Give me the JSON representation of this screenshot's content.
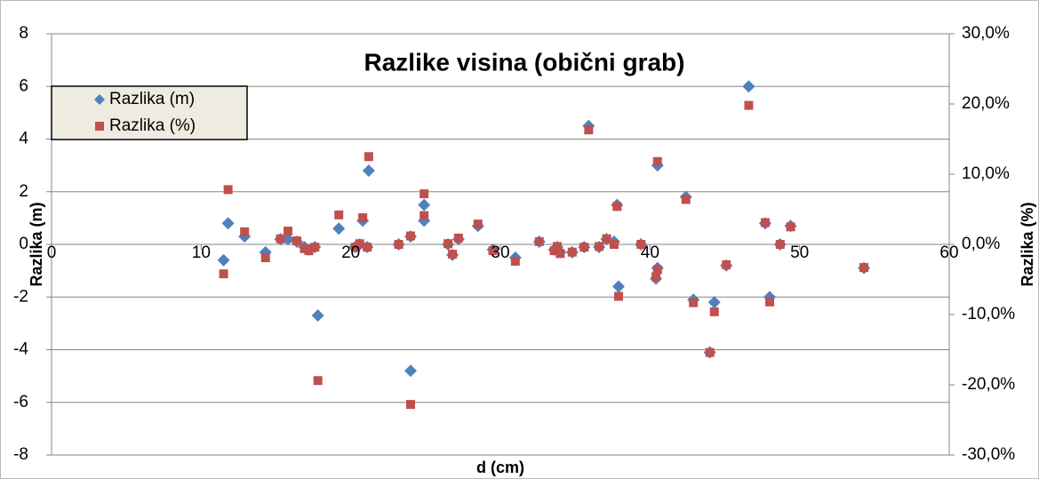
{
  "chart_data": {
    "type": "scatter",
    "title": "Razlike visina (obični grab)",
    "x_label": "d (cm)",
    "y_label": "Razlika (m)",
    "y2_label": "Razlika (%)",
    "xlim": [
      0,
      60
    ],
    "xticks": [
      0,
      10,
      20,
      30,
      40,
      50,
      60
    ],
    "ylim": [
      -8,
      8
    ],
    "yticks": [
      -8,
      -6,
      -4,
      -2,
      0,
      2,
      4,
      6,
      8
    ],
    "y2lim": [
      -30,
      30
    ],
    "y2ticks": [
      {
        "value": -30,
        "label": "-30,0%"
      },
      {
        "value": -20,
        "label": "-20,0%"
      },
      {
        "value": -10,
        "label": "-10,0%"
      },
      {
        "value": 0,
        "label": "0,0%"
      },
      {
        "value": 10,
        "label": "10,0%"
      },
      {
        "value": 20,
        "label": "20,0%"
      },
      {
        "value": 30,
        "label": "30,0%"
      }
    ],
    "grid": true,
    "legend": "upper left",
    "series": [
      {
        "name": "Razlika (m)",
        "color": "#4f81bd",
        "marker": "diamond",
        "x": [
          11.5,
          11.8,
          12.9,
          14.3,
          15.3,
          15.8,
          16.4,
          16.9,
          17.2,
          17.6,
          17.8,
          19.2,
          20.3,
          20.6,
          20.8,
          21.1,
          21.2,
          23.2,
          24.0,
          24.0,
          24.9,
          24.9,
          26.5,
          26.8,
          27.2,
          28.5,
          29.5,
          31.0,
          32.6,
          33.6,
          33.8,
          34.0,
          34.8,
          35.6,
          35.9,
          36.6,
          37.1,
          37.6,
          37.8,
          37.9,
          39.4,
          40.4,
          40.5,
          40.5,
          42.4,
          42.9,
          44.0,
          44.3,
          45.1,
          46.6,
          47.7,
          48.0,
          48.7,
          49.4,
          54.3
        ],
        "values": [
          -0.6,
          0.8,
          0.3,
          -0.3,
          0.2,
          0.2,
          0.1,
          -0.1,
          -0.2,
          -0.1,
          -2.7,
          0.6,
          -0.1,
          0,
          0.9,
          -0.1,
          2.8,
          0,
          0.3,
          -4.8,
          0.9,
          1.5,
          0,
          -0.4,
          0.2,
          0.7,
          -0.2,
          -0.5,
          0.1,
          -0.2,
          -0.1,
          -0.3,
          -0.3,
          -0.1,
          4.5,
          -0.1,
          0.2,
          0.1,
          1.5,
          -1.6,
          0,
          -1.3,
          -0.9,
          3.0,
          1.8,
          -2.1,
          -4.1,
          -2.2,
          -0.8,
          6.0,
          0.8,
          -2.0,
          0,
          0.7,
          -0.9
        ]
      },
      {
        "name": "Razlika (%)",
        "color": "#c0504d",
        "marker": "square",
        "axis": "y2",
        "x": [
          11.5,
          11.8,
          12.9,
          14.3,
          15.3,
          15.8,
          16.4,
          16.9,
          17.2,
          17.6,
          17.8,
          19.2,
          20.3,
          20.6,
          20.8,
          21.1,
          21.2,
          23.2,
          24.0,
          24.0,
          24.9,
          24.9,
          26.5,
          26.8,
          27.2,
          28.5,
          29.5,
          31.0,
          32.6,
          33.6,
          33.8,
          34.0,
          34.8,
          35.6,
          35.9,
          36.6,
          37.1,
          37.6,
          37.8,
          37.9,
          39.4,
          40.4,
          40.5,
          40.5,
          42.4,
          42.9,
          44.0,
          44.3,
          45.1,
          46.6,
          47.7,
          48.0,
          48.7,
          49.4,
          54.3
        ],
        "values": [
          -4.2,
          7.8,
          1.8,
          -1.9,
          0.8,
          1.9,
          0.5,
          -0.6,
          -0.9,
          -0.4,
          -19.4,
          4.2,
          -0.4,
          0.1,
          3.8,
          -0.4,
          12.5,
          0,
          1.2,
          -22.8,
          4.1,
          7.2,
          0.1,
          -1.4,
          0.9,
          2.9,
          -0.9,
          -2.4,
          0.4,
          -0.9,
          -0.3,
          -1.3,
          -1.1,
          -0.4,
          16.3,
          -0.3,
          0.8,
          0,
          5.4,
          -7.4,
          0,
          -4.6,
          -3.6,
          11.8,
          6.4,
          -8.3,
          -15.4,
          -9.6,
          -2.9,
          19.8,
          3.1,
          -8.2,
          0,
          2.5,
          -3.3
        ]
      }
    ]
  }
}
